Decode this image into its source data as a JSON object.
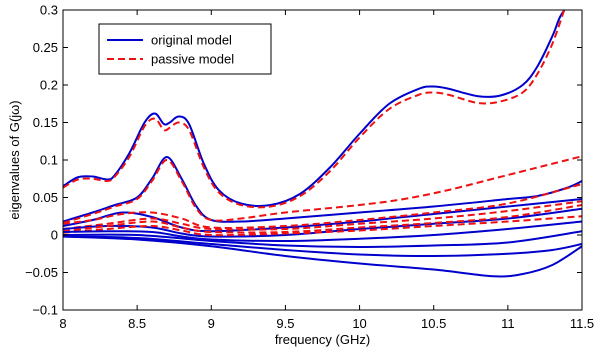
{
  "chart_data": {
    "type": "line",
    "xlabel": "frequency (GHz)",
    "ylabel": "eigenvalues of G(jω)",
    "xlim": [
      8,
      11.5
    ],
    "ylim": [
      -0.1,
      0.3
    ],
    "xticks": [
      8,
      8.5,
      9,
      9.5,
      10,
      10.5,
      11,
      11.5
    ],
    "xtick_labels": [
      "8",
      "8.5",
      "9",
      "9.5",
      "10",
      "10.5",
      "11",
      "11.5"
    ],
    "yticks": [
      -0.1,
      -0.05,
      0,
      0.05,
      0.1,
      0.15,
      0.2,
      0.25,
      0.3
    ],
    "ytick_labels": [
      "−0.1",
      "−0.05",
      "0",
      "0.05",
      "0.1",
      "0.15",
      "0.2",
      "0.25",
      "0.3"
    ],
    "grid": false,
    "legend_position": "top-left",
    "legend": [
      {
        "label": "original model",
        "color": "#0000cc",
        "style": "solid"
      },
      {
        "label": "passive model",
        "color": "#ee1111",
        "style": "dashed"
      }
    ],
    "colors": {
      "original": "#0000cc",
      "passive": "#ee1111"
    },
    "series": [
      {
        "group": "original",
        "style": "solid",
        "points": [
          [
            8.0,
            0.065
          ],
          [
            8.1,
            0.077
          ],
          [
            8.2,
            0.078
          ],
          [
            8.3,
            0.074
          ],
          [
            8.35,
            0.08
          ],
          [
            8.45,
            0.11
          ],
          [
            8.55,
            0.15
          ],
          [
            8.62,
            0.162
          ],
          [
            8.68,
            0.148
          ],
          [
            8.72,
            0.15
          ],
          [
            8.78,
            0.158
          ],
          [
            8.85,
            0.148
          ],
          [
            8.95,
            0.095
          ],
          [
            9.05,
            0.06
          ],
          [
            9.2,
            0.042
          ],
          [
            9.4,
            0.04
          ],
          [
            9.6,
            0.055
          ],
          [
            9.8,
            0.09
          ],
          [
            10.0,
            0.135
          ],
          [
            10.2,
            0.175
          ],
          [
            10.4,
            0.195
          ],
          [
            10.5,
            0.198
          ],
          [
            10.6,
            0.195
          ],
          [
            10.8,
            0.185
          ],
          [
            10.95,
            0.186
          ],
          [
            11.1,
            0.2
          ],
          [
            11.2,
            0.225
          ],
          [
            11.3,
            0.265
          ],
          [
            11.35,
            0.29
          ],
          [
            11.4,
            0.305
          ]
        ]
      },
      {
        "group": "passive",
        "style": "dashed",
        "points": [
          [
            8.0,
            0.063
          ],
          [
            8.1,
            0.074
          ],
          [
            8.2,
            0.075
          ],
          [
            8.3,
            0.072
          ],
          [
            8.35,
            0.078
          ],
          [
            8.45,
            0.105
          ],
          [
            8.55,
            0.145
          ],
          [
            8.62,
            0.155
          ],
          [
            8.68,
            0.14
          ],
          [
            8.72,
            0.143
          ],
          [
            8.78,
            0.15
          ],
          [
            8.85,
            0.14
          ],
          [
            8.95,
            0.09
          ],
          [
            9.05,
            0.057
          ],
          [
            9.2,
            0.04
          ],
          [
            9.4,
            0.038
          ],
          [
            9.6,
            0.052
          ],
          [
            9.8,
            0.085
          ],
          [
            10.0,
            0.13
          ],
          [
            10.2,
            0.168
          ],
          [
            10.4,
            0.187
          ],
          [
            10.5,
            0.19
          ],
          [
            10.6,
            0.187
          ],
          [
            10.8,
            0.176
          ],
          [
            10.95,
            0.178
          ],
          [
            11.1,
            0.19
          ],
          [
            11.2,
            0.215
          ],
          [
            11.3,
            0.255
          ],
          [
            11.38,
            0.3
          ]
        ]
      },
      {
        "group": "original",
        "style": "solid",
        "points": [
          [
            8.0,
            0.018
          ],
          [
            8.2,
            0.03
          ],
          [
            8.35,
            0.04
          ],
          [
            8.5,
            0.05
          ],
          [
            8.6,
            0.075
          ],
          [
            8.7,
            0.104
          ],
          [
            8.8,
            0.075
          ],
          [
            8.9,
            0.038
          ],
          [
            9.0,
            0.02
          ],
          [
            9.2,
            0.018
          ],
          [
            9.5,
            0.022
          ],
          [
            10.0,
            0.03
          ],
          [
            10.5,
            0.038
          ],
          [
            11.0,
            0.048
          ],
          [
            11.2,
            0.052
          ],
          [
            11.4,
            0.063
          ],
          [
            11.5,
            0.072
          ]
        ]
      },
      {
        "group": "passive",
        "style": "dashed",
        "points": [
          [
            8.0,
            0.016
          ],
          [
            8.2,
            0.028
          ],
          [
            8.35,
            0.038
          ],
          [
            8.5,
            0.048
          ],
          [
            8.6,
            0.072
          ],
          [
            8.7,
            0.1
          ],
          [
            8.8,
            0.072
          ],
          [
            8.9,
            0.035
          ],
          [
            9.0,
            0.02
          ],
          [
            9.2,
            0.022
          ],
          [
            9.5,
            0.03
          ],
          [
            10.0,
            0.04
          ],
          [
            10.3,
            0.048
          ],
          [
            10.6,
            0.06
          ],
          [
            10.9,
            0.075
          ],
          [
            11.1,
            0.085
          ],
          [
            11.3,
            0.095
          ],
          [
            11.5,
            0.105
          ]
        ]
      },
      {
        "group": "original",
        "style": "solid",
        "points": [
          [
            8.0,
            0.012
          ],
          [
            8.2,
            0.02
          ],
          [
            8.4,
            0.03
          ],
          [
            8.6,
            0.024
          ],
          [
            8.8,
            0.01
          ],
          [
            9.0,
            0.005
          ],
          [
            9.5,
            0.01
          ],
          [
            10.0,
            0.018
          ],
          [
            10.5,
            0.028
          ],
          [
            11.0,
            0.038
          ],
          [
            11.5,
            0.048
          ]
        ]
      },
      {
        "group": "passive",
        "style": "dashed",
        "points": [
          [
            8.0,
            0.015
          ],
          [
            8.2,
            0.02
          ],
          [
            8.4,
            0.028
          ],
          [
            8.6,
            0.03
          ],
          [
            8.8,
            0.022
          ],
          [
            9.0,
            0.01
          ],
          [
            9.5,
            0.012
          ],
          [
            10.0,
            0.02
          ],
          [
            10.5,
            0.03
          ],
          [
            11.0,
            0.042
          ],
          [
            11.5,
            0.068
          ]
        ]
      },
      {
        "group": "passive",
        "style": "dashed",
        "points": [
          [
            8.0,
            0.008
          ],
          [
            8.3,
            0.015
          ],
          [
            8.6,
            0.022
          ],
          [
            8.8,
            0.015
          ],
          [
            9.0,
            0.008
          ],
          [
            9.5,
            0.008
          ],
          [
            10.0,
            0.015
          ],
          [
            10.5,
            0.022
          ],
          [
            11.0,
            0.032
          ],
          [
            11.5,
            0.045
          ]
        ]
      },
      {
        "group": "original",
        "style": "solid",
        "points": [
          [
            8.0,
            0.008
          ],
          [
            8.3,
            0.012
          ],
          [
            8.6,
            0.01
          ],
          [
            8.8,
            0.002
          ],
          [
            9.0,
            -0.002
          ],
          [
            9.5,
            0.0
          ],
          [
            10.0,
            0.008
          ],
          [
            10.5,
            0.015
          ],
          [
            11.0,
            0.022
          ],
          [
            11.5,
            0.035
          ]
        ]
      },
      {
        "group": "passive",
        "style": "dashed",
        "points": [
          [
            8.0,
            0.005
          ],
          [
            8.3,
            0.012
          ],
          [
            8.6,
            0.018
          ],
          [
            8.8,
            0.01
          ],
          [
            9.0,
            0.004
          ],
          [
            9.5,
            0.004
          ],
          [
            10.0,
            0.01
          ],
          [
            10.5,
            0.016
          ],
          [
            11.0,
            0.024
          ],
          [
            11.5,
            0.04
          ]
        ]
      },
      {
        "group": "passive",
        "style": "dashed",
        "points": [
          [
            8.0,
            0.003
          ],
          [
            8.3,
            0.008
          ],
          [
            8.6,
            0.012
          ],
          [
            8.8,
            0.006
          ],
          [
            9.0,
            0.0
          ],
          [
            9.5,
            0.002
          ],
          [
            10.0,
            0.006
          ],
          [
            10.5,
            0.012
          ],
          [
            11.0,
            0.018
          ],
          [
            11.5,
            0.025
          ]
        ]
      },
      {
        "group": "original",
        "style": "solid",
        "points": [
          [
            8.0,
            0.004
          ],
          [
            8.3,
            0.005
          ],
          [
            8.6,
            0.004
          ],
          [
            8.8,
            -0.002
          ],
          [
            9.0,
            -0.006
          ],
          [
            9.5,
            -0.008
          ],
          [
            10.0,
            -0.005
          ],
          [
            10.5,
            0.0
          ],
          [
            11.0,
            0.008
          ],
          [
            11.5,
            0.018
          ]
        ]
      },
      {
        "group": "original",
        "style": "solid",
        "points": [
          [
            8.0,
            0.0
          ],
          [
            8.5,
            0.0
          ],
          [
            9.0,
            -0.008
          ],
          [
            9.5,
            -0.014
          ],
          [
            10.0,
            -0.016
          ],
          [
            10.5,
            -0.014
          ],
          [
            11.0,
            -0.01
          ],
          [
            11.5,
            0.005
          ]
        ]
      },
      {
        "group": "original",
        "style": "solid",
        "points": [
          [
            8.0,
            -0.002
          ],
          [
            8.5,
            -0.004
          ],
          [
            9.0,
            -0.012
          ],
          [
            9.5,
            -0.02
          ],
          [
            10.0,
            -0.026
          ],
          [
            10.5,
            -0.028
          ],
          [
            11.0,
            -0.025
          ],
          [
            11.3,
            -0.02
          ],
          [
            11.5,
            -0.012
          ]
        ]
      },
      {
        "group": "original",
        "style": "solid",
        "points": [
          [
            8.0,
            -0.002
          ],
          [
            8.5,
            -0.006
          ],
          [
            9.0,
            -0.015
          ],
          [
            9.5,
            -0.028
          ],
          [
            10.0,
            -0.038
          ],
          [
            10.5,
            -0.046
          ],
          [
            10.9,
            -0.055
          ],
          [
            11.1,
            -0.052
          ],
          [
            11.3,
            -0.04
          ],
          [
            11.5,
            -0.015
          ]
        ]
      }
    ]
  }
}
